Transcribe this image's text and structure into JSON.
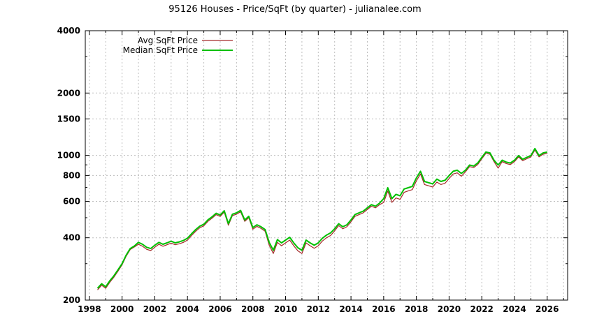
{
  "title": "95126 Houses - Price/SqFt (by quarter) - julianalee.com",
  "colors": {
    "background": "#ffffff",
    "grid": "#bdbdbd",
    "axis": "#000000",
    "avg_series": "#a52a2a",
    "median_series": "#00c000"
  },
  "chart_data": {
    "type": "line",
    "title": "95126 Houses - Price/SqFt (by quarter) - julianalee.com",
    "xlabel": "",
    "ylabel": "",
    "y_scale": "log",
    "ylim": [
      200,
      4000
    ],
    "yticks": [
      200,
      400,
      600,
      800,
      1000,
      1500,
      2000,
      4000
    ],
    "ytick_labels": [
      "200",
      "400",
      "600",
      "800",
      "1000",
      "1500",
      "2000",
      "4000"
    ],
    "xlim": [
      1997.75,
      2027.25
    ],
    "xticks": [
      1998,
      2000,
      2002,
      2004,
      2006,
      2008,
      2010,
      2012,
      2014,
      2016,
      2018,
      2020,
      2022,
      2024,
      2026
    ],
    "xtick_labels": [
      "1998",
      "2000",
      "2002",
      "2004",
      "2006",
      "2008",
      "2010",
      "2012",
      "2014",
      "2016",
      "2018",
      "2020",
      "2022",
      "2024",
      "2026"
    ],
    "grid": true,
    "legend_position": "top-left",
    "x_start": 1998.5,
    "x_step": 0.25,
    "series": [
      {
        "name": "Avg SqFt Price",
        "color": "#a52a2a",
        "width": 1.2,
        "values": [
          224,
          236,
          228,
          244,
          258,
          276,
          296,
          326,
          351,
          361,
          372,
          364,
          352,
          347,
          360,
          372,
          364,
          370,
          377,
          370,
          374,
          380,
          390,
          410,
          430,
          447,
          457,
          480,
          497,
          517,
          507,
          532,
          460,
          512,
          520,
          534,
          480,
          500,
          440,
          454,
          444,
          430,
          368,
          336,
          380,
          366,
          378,
          390,
          366,
          346,
          336,
          378,
          366,
          356,
          366,
          386,
          400,
          410,
          432,
          458,
          442,
          452,
          478,
          508,
          518,
          528,
          548,
          568,
          558,
          578,
          593,
          673,
          593,
          623,
          613,
          663,
          673,
          683,
          753,
          813,
          723,
          713,
          703,
          743,
          723,
          733,
          773,
          813,
          823,
          793,
          833,
          883,
          873,
          903,
          963,
          1023,
          1013,
          933,
          868,
          933,
          913,
          903,
          933,
          983,
          943,
          963,
          983,
          1063,
          983,
          1013,
          1023
        ]
      },
      {
        "name": "Median SqFt Price",
        "color": "#00c000",
        "width": 2,
        "values": [
          228,
          240,
          232,
          248,
          262,
          280,
          300,
          330,
          355,
          365,
          380,
          372,
          360,
          355,
          368,
          380,
          372,
          378,
          385,
          378,
          382,
          388,
          398,
          418,
          438,
          455,
          465,
          488,
          505,
          525,
          515,
          540,
          468,
          520,
          528,
          542,
          488,
          508,
          448,
          462,
          452,
          438,
          380,
          348,
          392,
          378,
          390,
          402,
          378,
          358,
          348,
          390,
          378,
          368,
          378,
          398,
          412,
          422,
          442,
          468,
          452,
          462,
          488,
          518,
          528,
          538,
          558,
          578,
          568,
          588,
          618,
          698,
          618,
          648,
          638,
          688,
          698,
          708,
          778,
          838,
          748,
          738,
          728,
          768,
          748,
          758,
          798,
          838,
          848,
          818,
          848,
          898,
          888,
          918,
          978,
          1038,
          1028,
          948,
          898,
          948,
          928,
          918,
          948,
          998,
          958,
          978,
          998,
          1078,
          998,
          1028,
          1038
        ]
      }
    ]
  }
}
